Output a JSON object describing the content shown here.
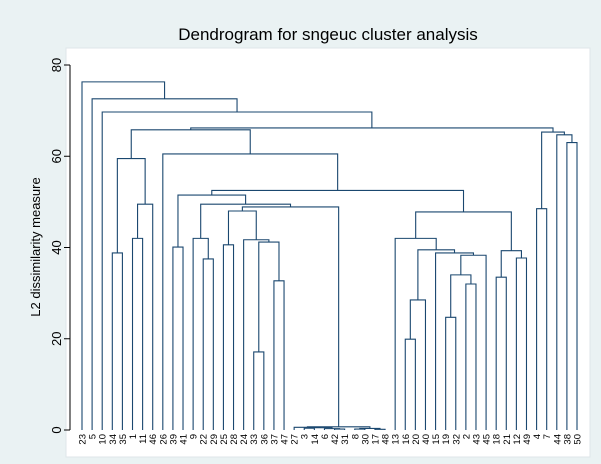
{
  "chart_data": {
    "type": "dendrogram",
    "title": "Dendrogram for sngeuc cluster analysis",
    "y_label": "L2 dissimilarity measure",
    "ylim": [
      0,
      80
    ],
    "yticks": [
      0,
      20,
      40,
      60,
      80
    ],
    "grid": false,
    "color": "#1a476f",
    "tree": {
      "height": 76.3,
      "children": [
        "23",
        {
          "height": 72.6,
          "children": [
            "5",
            {
              "height": 69.7,
              "children": [
                "10",
                {
                  "height": 66.2,
                  "children": [
                    {
                      "height": 65.8,
                      "children": [
                        {
                          "height": 59.5,
                          "children": [
                            {
                              "height": 38.8,
                              "children": [
                                "34",
                                "35"
                              ]
                            },
                            {
                              "height": 49.5,
                              "children": [
                                {
                                  "height": 42,
                                  "children": [
                                    "1",
                                    "11"
                                  ]
                                },
                                "46"
                              ]
                            }
                          ]
                        },
                        {
                          "height": 60.5,
                          "children": [
                            "26",
                            {
                              "height": 52.5,
                              "children": [
                                {
                                  "height": 51.5,
                                  "children": [
                                    {
                                      "height": 40.1,
                                      "children": [
                                        "39",
                                        "41"
                                      ]
                                    },
                                    {
                                      "height": 49.5,
                                      "children": [
                                        {
                                          "height": 42,
                                          "children": [
                                            "9",
                                            {
                                              "height": 37.5,
                                              "children": [
                                                "22",
                                                "29"
                                              ]
                                            }
                                          ]
                                        },
                                        {
                                          "height": 48.9,
                                          "children": [
                                            {
                                              "height": 48.0,
                                              "children": [
                                                {
                                                  "height": 40.6,
                                                  "children": [
                                                    "25",
                                                    "28"
                                                  ]
                                                },
                                                {
                                                  "height": 41.7,
                                                  "children": [
                                                    "24",
                                                    {
                                                      "height": 41.2,
                                                      "children": [
                                                        {
                                                          "height": 17.1,
                                                          "children": [
                                                            "33",
                                                            "36"
                                                          ]
                                                        },
                                                        {
                                                          "height": 32.7,
                                                          "children": [
                                                            "37",
                                                            "47"
                                                          ]
                                                        }
                                                      ]
                                                    }
                                                  ]
                                                }
                                              ]
                                            },
                                            {
                                              "height": 0.7,
                                              "children": [
                                                {
                                                  "height": 0.6,
                                                  "children": [
                                                    "27",
                                                    {
                                                      "height": 0.5,
                                                      "children": [
                                                        {
                                                          "height": 0.4,
                                                          "children": [
                                                            "3",
                                                            "14"
                                                          ]
                                                        },
                                                        {
                                                          "height": 0.3,
                                                          "children": [
                                                            "6",
                                                            {
                                                              "height": 0.2,
                                                              "children": [
                                                                "42",
                                                                "31"
                                                              ]
                                                            }
                                                          ]
                                                        }
                                                      ]
                                                    }
                                                  ]
                                                },
                                                {
                                                  "height": 0.35,
                                                  "children": [
                                                    {
                                                      "height": 0.2,
                                                      "children": [
                                                        "8",
                                                        "30"
                                                      ]
                                                    },
                                                    {
                                                      "height": 0.15,
                                                      "children": [
                                                        "17",
                                                        "48"
                                                      ]
                                                    }
                                                  ]
                                                }
                                              ]
                                            }
                                          ]
                                        }
                                      ]
                                    }
                                  ]
                                },
                                {
                                  "height": 47.8,
                                  "children": [
                                    {
                                      "height": 42,
                                      "children": [
                                        "13",
                                        {
                                          "height": 39.5,
                                          "children": [
                                            {
                                              "height": 28.5,
                                              "children": [
                                                {
                                                  "height": 19.9,
                                                  "children": [
                                                    "16",
                                                    "20"
                                                  ]
                                                },
                                                "40"
                                              ]
                                            },
                                            {
                                              "height": 38.8,
                                              "children": [
                                                "15",
                                                {
                                                  "height": 38.3,
                                                  "children": [
                                                    {
                                                      "height": 34,
                                                      "children": [
                                                        {
                                                          "height": 24.7,
                                                          "children": [
                                                            "19",
                                                            "32"
                                                          ]
                                                        },
                                                        {
                                                          "height": 32,
                                                          "children": [
                                                            "2",
                                                            "43"
                                                          ]
                                                        }
                                                      ]
                                                    },
                                                    "45"
                                                  ]
                                                }
                                              ]
                                            }
                                          ]
                                        }
                                      ]
                                    },
                                    {
                                      "height": 39.3,
                                      "children": [
                                        {
                                          "height": 33.5,
                                          "children": [
                                            "18",
                                            "21"
                                          ]
                                        },
                                        {
                                          "height": 37.7,
                                          "children": [
                                            "12",
                                            "49"
                                          ]
                                        }
                                      ]
                                    }
                                  ]
                                }
                              ]
                            }
                          ]
                        }
                      ]
                    },
                    {
                      "height": 65.3,
                      "children": [
                        {
                          "height": 48.5,
                          "children": [
                            "4",
                            "7"
                          ]
                        },
                        {
                          "height": 64.7,
                          "children": [
                            "44",
                            {
                              "height": 63,
                              "children": [
                                "38",
                                "50"
                              ]
                            }
                          ]
                        }
                      ]
                    }
                  ]
                }
              ]
            }
          ]
        }
      ]
    }
  }
}
